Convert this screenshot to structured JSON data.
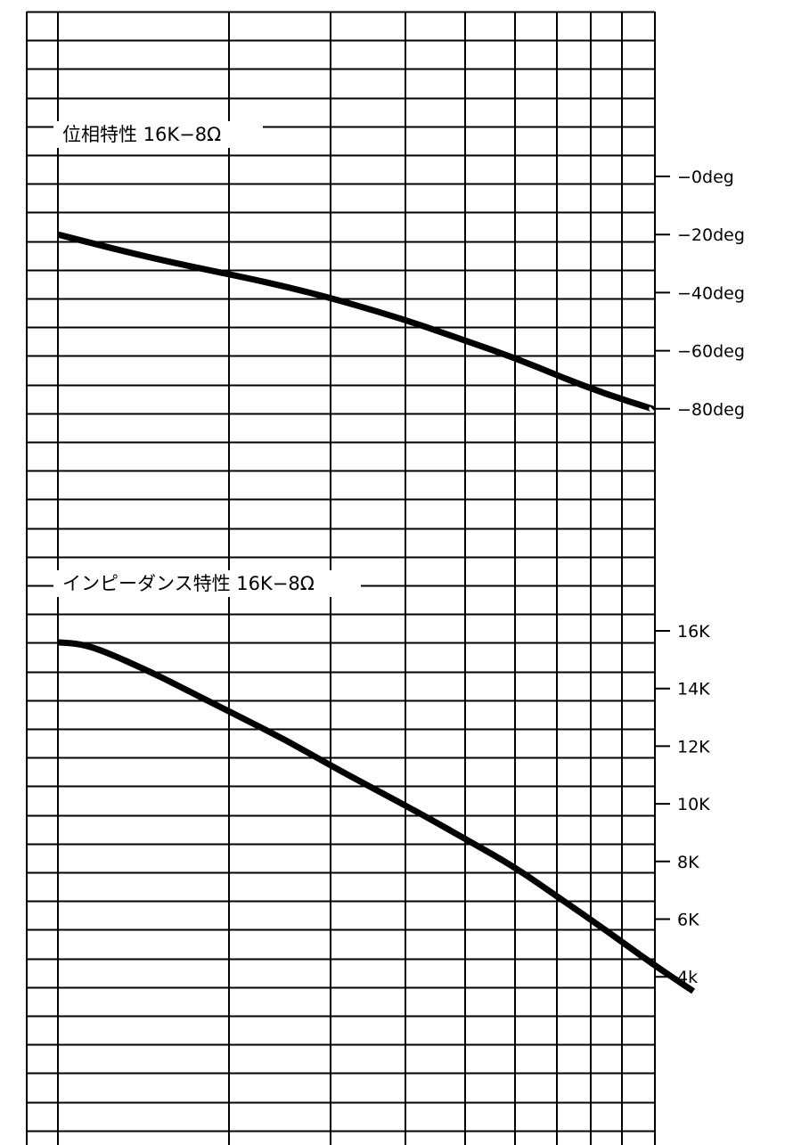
{
  "chart_data": [
    {
      "type": "line",
      "title": "位相特性 16K−8Ω",
      "x_scale": "log",
      "y_tick_labels": [
        "−0deg",
        "−20deg",
        "−40deg",
        "−60deg",
        "−80deg"
      ],
      "y_ticks": [
        0,
        -20,
        -40,
        -60,
        -80
      ],
      "ylim": [
        -80,
        0
      ],
      "series": [
        {
          "points": [
            {
              "x_decade": 0.0,
              "y": -20
            },
            {
              "x_decade": 0.2,
              "y": -28
            },
            {
              "x_decade": 0.4,
              "y": -34.5
            },
            {
              "x_decade": 0.5,
              "y": -38
            },
            {
              "x_decade": 0.6,
              "y": -42
            },
            {
              "x_decade": 0.7,
              "y": -46.5
            },
            {
              "x_decade": 0.8,
              "y": -51.5
            },
            {
              "x_decade": 0.9,
              "y": -57
            },
            {
              "x_decade": 1.0,
              "y": -62.5
            },
            {
              "x_decade": 1.1,
              "y": -69
            },
            {
              "x_decade": 1.2,
              "y": -75
            },
            {
              "x_decade": 1.3,
              "y": -80
            }
          ]
        }
      ],
      "grid": true
    },
    {
      "type": "line",
      "title": "インピーダンス特性 16K−8Ω",
      "x_scale": "log",
      "y_tick_labels": [
        "16K",
        "14K",
        "12K",
        "10K",
        "8K",
        "6K",
        "4k"
      ],
      "y_ticks": [
        16000,
        14000,
        12000,
        10000,
        8000,
        6000,
        4000
      ],
      "ylim": [
        4000,
        16000
      ],
      "series": [
        {
          "points": [
            {
              "x_decade": 0.0,
              "y": 15600
            },
            {
              "x_decade": 0.05,
              "y": 15550
            },
            {
              "x_decade": 0.1,
              "y": 15300
            },
            {
              "x_decade": 0.2,
              "y": 14600
            },
            {
              "x_decade": 0.3,
              "y": 13800
            },
            {
              "x_decade": 0.4,
              "y": 13000
            },
            {
              "x_decade": 0.5,
              "y": 12200
            },
            {
              "x_decade": 0.6,
              "y": 11300
            },
            {
              "x_decade": 0.7,
              "y": 10450
            },
            {
              "x_decade": 0.8,
              "y": 9600
            },
            {
              "x_decade": 0.9,
              "y": 8700
            },
            {
              "x_decade": 1.0,
              "y": 7800
            },
            {
              "x_decade": 1.1,
              "y": 6700
            },
            {
              "x_decade": 1.2,
              "y": 5600
            },
            {
              "x_decade": 1.3,
              "y": 4450
            },
            {
              "x_decade": 1.39,
              "y": 3500
            }
          ]
        }
      ],
      "grid": true
    }
  ]
}
